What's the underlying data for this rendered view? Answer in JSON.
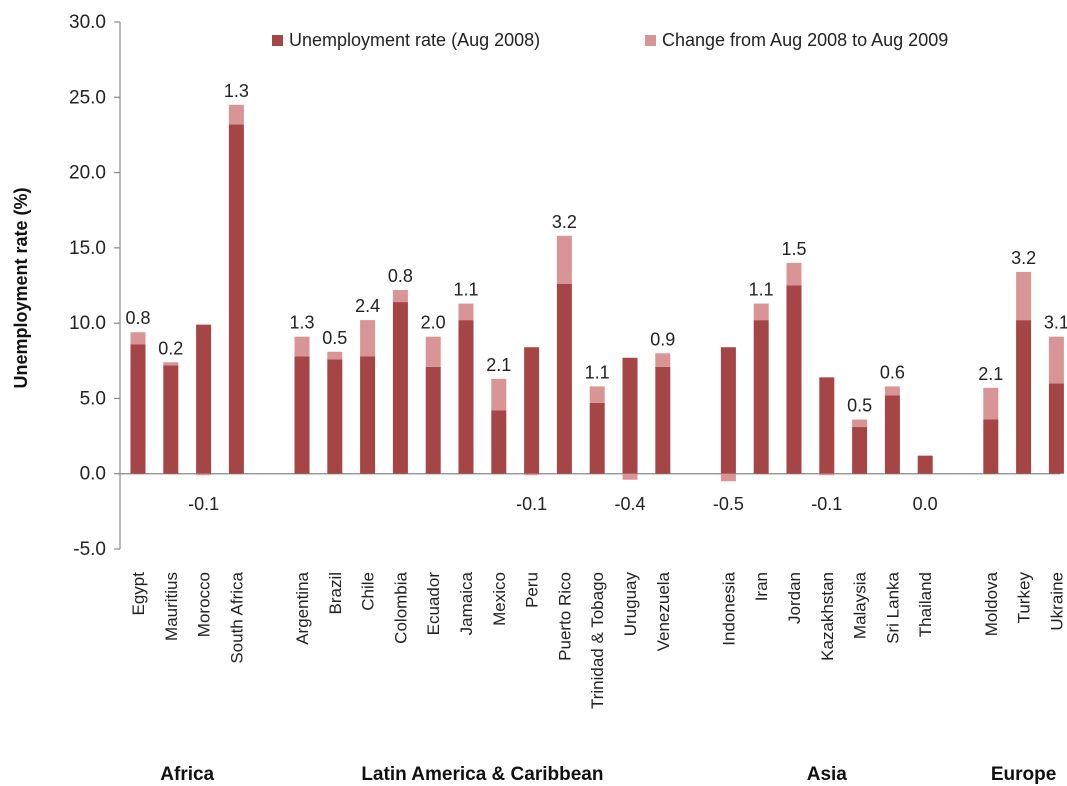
{
  "chart_data": {
    "type": "bar",
    "stacked": true,
    "ylabel": "Unemployment rate (%)",
    "ylim": [
      -5,
      30
    ],
    "yticks": [
      "-5.0",
      "0.0",
      "5.0",
      "10.0",
      "15.0",
      "20.0",
      "25.0",
      "30.0"
    ],
    "grid": false,
    "legend_position": "top",
    "legend": [
      "Unemployment rate (Aug 2008)",
      "Change from Aug 2008 to Aug 2009"
    ],
    "colors": {
      "base": "#a64545",
      "change": "#d99595"
    },
    "groups": [
      {
        "name": "Africa",
        "categories": [
          "Egypt",
          "Mauritius",
          "Morocco",
          "South Africa"
        ]
      },
      {
        "name": "Latin America & Caribbean",
        "categories": [
          "Argentina",
          "Brazil",
          "Chile",
          "Colombia",
          "Ecuador",
          "Jamaica",
          "Mexico",
          "Peru",
          "Puerto Rico",
          "Trinidad & Tobago",
          "Uruguay",
          "Venezuela"
        ]
      },
      {
        "name": "Asia",
        "categories": [
          "Indonesia",
          "Iran",
          "Jordan",
          "Kazakhstan",
          "Malaysia",
          "Sri Lanka",
          "Thailand"
        ]
      },
      {
        "name": "Europe",
        "categories": [
          "Moldova",
          "Turkey",
          "Ukraine"
        ]
      }
    ],
    "series": [
      {
        "name": "Unemployment rate (Aug 2008)",
        "values": [
          8.6,
          7.2,
          9.9,
          23.2,
          7.8,
          7.6,
          7.8,
          11.4,
          7.1,
          10.2,
          4.2,
          8.4,
          12.6,
          4.7,
          7.7,
          7.1,
          8.4,
          10.2,
          12.5,
          6.4,
          3.1,
          5.2,
          1.2,
          3.6,
          10.2,
          6.0
        ]
      },
      {
        "name": "Change from Aug 2008 to Aug 2009",
        "values": [
          0.8,
          0.2,
          -0.1,
          1.3,
          1.3,
          0.5,
          2.4,
          0.8,
          2.0,
          1.1,
          2.1,
          -0.1,
          3.2,
          1.1,
          -0.4,
          0.9,
          -0.5,
          1.1,
          1.5,
          -0.1,
          0.5,
          0.6,
          0.0,
          2.1,
          3.2,
          3.1
        ]
      }
    ],
    "data_labels": [
      "0.8",
      "0.2",
      "-0.1",
      "1.3",
      "1.3",
      "0.5",
      "2.4",
      "0.8",
      "2.0",
      "1.1",
      "2.1",
      "-0.1",
      "3.2",
      "1.1",
      "-0.4",
      "0.9",
      "-0.5",
      "1.1",
      "1.5",
      "-0.1",
      "0.5",
      "0.6",
      "0.0",
      "2.1",
      "3.2",
      "3.1"
    ]
  }
}
